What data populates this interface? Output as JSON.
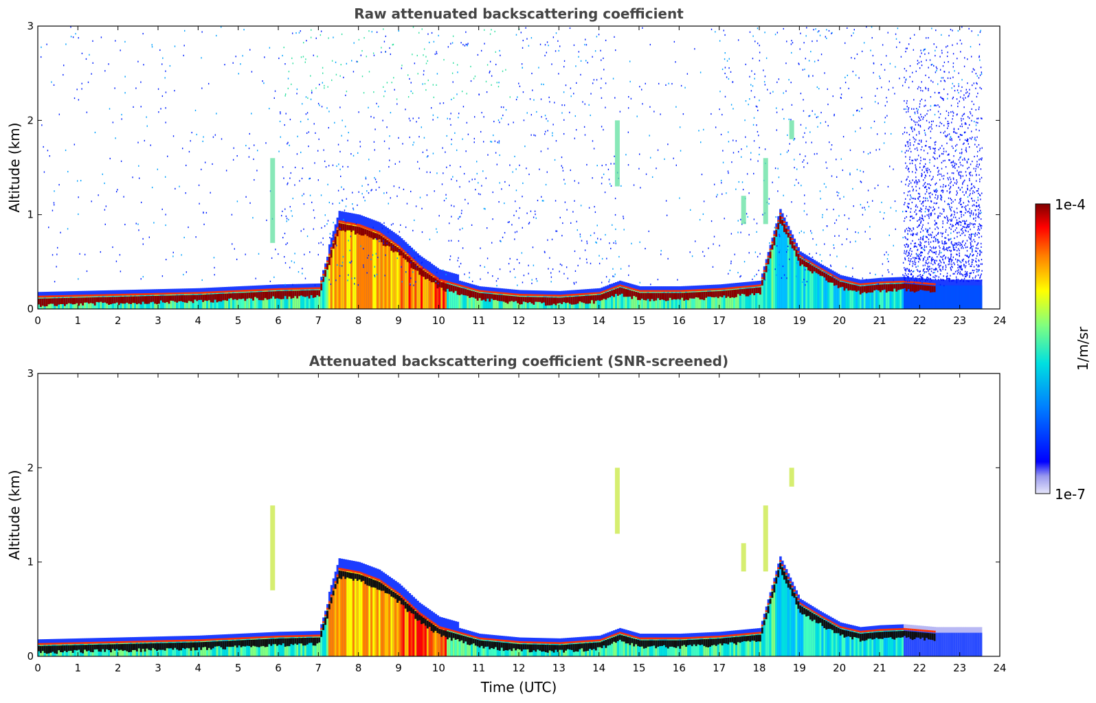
{
  "chart_data": [
    {
      "type": "heatmap",
      "title": "Raw attenuated backscattering coefficient",
      "xlabel": "",
      "ylabel": "Altitude (km)",
      "xlim": [
        0,
        24
      ],
      "ylim": [
        0,
        3
      ],
      "x_ticks": [
        "0",
        "1",
        "2",
        "3",
        "4",
        "5",
        "6",
        "7",
        "8",
        "9",
        "10",
        "11",
        "12",
        "13",
        "14",
        "15",
        "16",
        "17",
        "18",
        "19",
        "20",
        "21",
        "22",
        "23",
        "24"
      ],
      "y_ticks": [
        "0",
        "1",
        "2",
        "3"
      ],
      "screened": false,
      "data_end_hour": 23.55,
      "layer_top_km": [
        [
          0,
          0.12
        ],
        [
          1,
          0.13
        ],
        [
          2,
          0.14
        ],
        [
          3,
          0.15
        ],
        [
          4,
          0.16
        ],
        [
          5,
          0.18
        ],
        [
          6,
          0.2
        ],
        [
          7,
          0.21
        ],
        [
          7.5,
          0.92
        ],
        [
          8,
          0.88
        ],
        [
          8.5,
          0.8
        ],
        [
          9,
          0.65
        ],
        [
          9.5,
          0.45
        ],
        [
          10,
          0.3
        ],
        [
          11,
          0.18
        ],
        [
          12,
          0.14
        ],
        [
          13,
          0.13
        ],
        [
          14,
          0.16
        ],
        [
          14.5,
          0.24
        ],
        [
          15,
          0.18
        ],
        [
          16,
          0.18
        ],
        [
          17,
          0.2
        ],
        [
          18,
          0.24
        ],
        [
          18.5,
          1.0
        ],
        [
          19,
          0.55
        ],
        [
          19.5,
          0.42
        ],
        [
          20,
          0.3
        ],
        [
          20.5,
          0.25
        ],
        [
          21,
          0.27
        ],
        [
          21.6,
          0.28
        ],
        [
          22.4,
          0.25
        ]
      ]
    },
    {
      "type": "heatmap",
      "title": "Attenuated backscattering coefficient (SNR-screened)",
      "xlabel": "Time (UTC)",
      "ylabel": "Altitude (km)",
      "xlim": [
        0,
        24
      ],
      "ylim": [
        0,
        3
      ],
      "x_ticks": [
        "0",
        "1",
        "2",
        "3",
        "4",
        "5",
        "6",
        "7",
        "8",
        "9",
        "10",
        "11",
        "12",
        "13",
        "14",
        "15",
        "16",
        "17",
        "18",
        "19",
        "20",
        "21",
        "22",
        "23",
        "24"
      ],
      "y_ticks": [
        "0",
        "1",
        "2",
        "3"
      ],
      "screened": true,
      "data_end_hour": 23.55
    }
  ],
  "colorbar": {
    "label": "1/m/sr",
    "max_label": "1e-4",
    "min_label": "1e-7",
    "colormap": "jet"
  }
}
